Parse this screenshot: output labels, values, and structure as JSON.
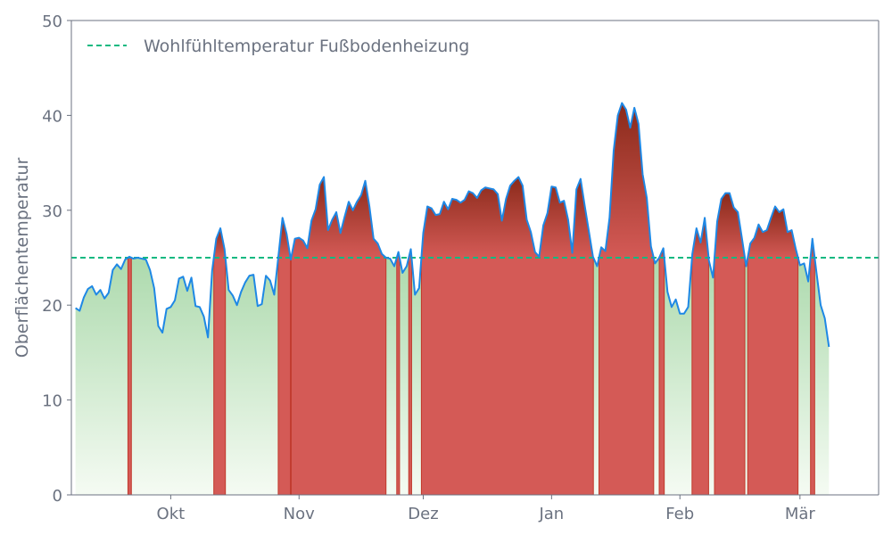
{
  "chart_data": {
    "type": "area",
    "ylabel": "Oberflächentemperatur",
    "xlabel": "",
    "title": "",
    "ylim": [
      0,
      50
    ],
    "yticks": [
      0,
      10,
      20,
      30,
      40,
      50
    ],
    "xlim": [
      "2023-09-07",
      "2024-03-20"
    ],
    "xticks": [
      {
        "label": "Okt",
        "date": "2023-10-01"
      },
      {
        "label": "Nov",
        "date": "2023-11-01"
      },
      {
        "label": "Dez",
        "date": "2023-12-01"
      },
      {
        "label": "Jan",
        "date": "2024-01-01"
      },
      {
        "label": "Feb",
        "date": "2024-02-01"
      },
      {
        "label": "Mär",
        "date": "2024-03-01"
      }
    ],
    "threshold": {
      "name": "Wohlfühltemperatur Fußbodenheizung",
      "value": 25,
      "color": "#10b981"
    },
    "legend_position": "top-left",
    "grid": false,
    "colors": {
      "line": "#1e88e5",
      "below_top": "#7dc47f",
      "below_bottom": "#f5fbf3",
      "above_top": "#8a2a1a",
      "above_bottom": "#d45a56",
      "axis": "#6b7280"
    },
    "series": [
      {
        "start_date": "2023-09-08",
        "values": [
          19.7,
          19.4,
          20.8,
          21.7,
          22.0,
          21.1,
          21.6,
          20.7,
          21.3,
          23.7,
          24.3,
          23.8,
          24.8,
          25.1,
          24.9,
          25.0,
          24.9,
          24.8,
          23.7,
          21.8,
          17.8,
          17.1,
          19.6,
          19.8,
          20.5,
          22.8,
          23.0,
          21.5,
          22.9,
          19.9,
          19.8,
          18.8,
          16.6,
          23.6,
          27.0,
          28.1,
          25.9,
          21.6,
          21.0,
          20.0,
          21.4,
          22.4,
          23.1,
          23.2,
          19.9,
          20.1,
          23.1,
          22.6,
          21.1,
          25.1,
          29.2,
          27.5,
          24.8,
          27.0,
          27.1,
          26.8,
          26.0,
          28.9,
          30.1,
          32.7,
          33.5,
          27.9,
          29.0,
          29.8,
          27.6,
          29.3,
          30.9,
          30.0,
          30.9,
          31.6,
          33.1,
          30.4,
          27.0,
          26.5,
          25.4,
          25.0,
          24.9,
          24.1,
          25.6,
          23.4,
          24.1,
          25.9,
          21.1,
          21.8,
          27.6,
          30.4,
          30.2,
          29.5,
          29.6,
          30.9,
          30.1,
          31.2,
          31.1,
          30.8,
          31.1,
          32.0,
          31.8,
          31.3,
          32.1,
          32.4,
          32.3,
          32.2,
          31.7,
          28.9,
          31.2,
          32.6,
          33.1,
          33.5,
          32.6,
          29.0,
          27.7,
          25.6,
          25.1,
          28.4,
          29.7,
          32.5,
          32.4,
          30.8,
          31.0,
          29.0,
          25.5,
          32.2,
          33.3,
          30.5,
          27.8,
          25.1,
          24.1,
          26.1,
          25.7,
          29.2,
          36.3,
          40.0,
          41.3,
          40.6,
          38.7,
          40.8,
          39.1,
          33.8,
          31.3,
          26.2,
          24.4,
          25.0,
          26.0,
          21.4,
          19.8,
          20.6,
          19.1,
          19.1,
          19.8,
          25.4,
          28.1,
          26.6,
          29.2,
          24.7,
          22.9,
          28.8,
          31.2,
          31.8,
          31.8,
          30.3,
          29.8,
          27.0,
          24.1,
          26.5,
          27.1,
          28.5,
          27.7,
          27.9,
          29.2,
          30.4,
          29.8,
          30.1,
          27.7,
          27.9,
          25.9,
          24.2,
          24.4,
          22.5,
          27.0,
          23.4,
          20.0,
          18.6,
          15.6
        ]
      }
    ]
  }
}
